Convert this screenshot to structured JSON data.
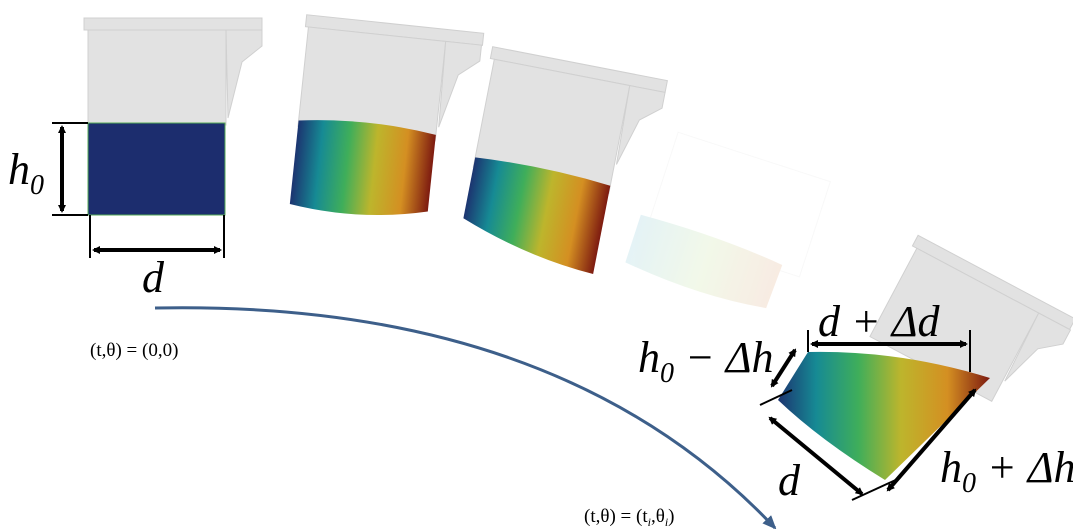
{
  "annotations": {
    "h0": [
      {
        "text": "h"
      },
      {
        "text": "0",
        "sub": true
      }
    ],
    "d_start": [
      {
        "text": "d"
      }
    ],
    "state_start": [
      {
        "text": "(t,θ) = (0,0)"
      }
    ],
    "h0_minus": [
      {
        "text": "h"
      },
      {
        "text": "0",
        "sub": true
      },
      {
        "text": " − Δh"
      }
    ],
    "d_plus": [
      {
        "text": "d + Δd"
      }
    ],
    "d_end": [
      {
        "text": "d"
      }
    ],
    "h0_plus": [
      {
        "text": "h"
      },
      {
        "text": "0",
        "sub": true
      },
      {
        "text": " + Δh"
      }
    ],
    "state_end": [
      {
        "text": "(t,θ) = (t"
      },
      {
        "text": "i",
        "sub": true
      },
      {
        "text": ",θ"
      },
      {
        "text": "i",
        "sub": true
      },
      {
        "text": ")"
      }
    ]
  }
}
